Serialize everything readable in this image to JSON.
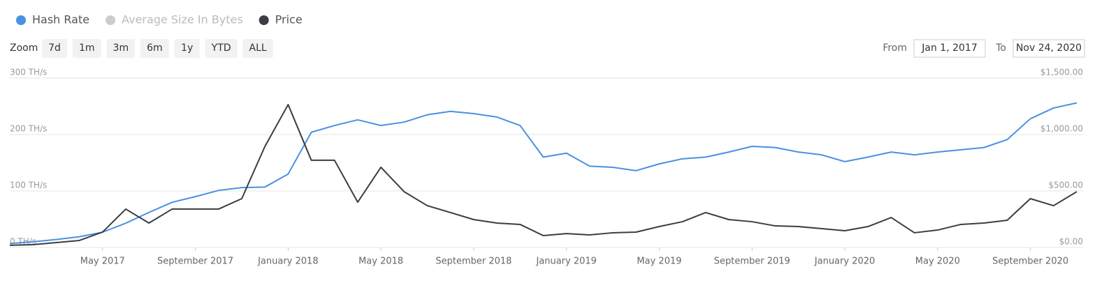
{
  "chart_data": {
    "type": "line",
    "x": [
      "2017-01",
      "2017-02",
      "2017-03",
      "2017-04",
      "2017-05",
      "2017-06",
      "2017-07",
      "2017-08",
      "2017-09",
      "2017-10",
      "2017-11",
      "2017-12",
      "2018-01",
      "2018-02",
      "2018-03",
      "2018-04",
      "2018-05",
      "2018-06",
      "2018-07",
      "2018-08",
      "2018-09",
      "2018-10",
      "2018-11",
      "2018-12",
      "2019-01",
      "2019-02",
      "2019-03",
      "2019-04",
      "2019-05",
      "2019-06",
      "2019-07",
      "2019-08",
      "2019-09",
      "2019-10",
      "2019-11",
      "2019-12",
      "2020-01",
      "2020-02",
      "2020-03",
      "2020-04",
      "2020-05",
      "2020-06",
      "2020-07",
      "2020-08",
      "2020-09",
      "2020-10",
      "2020-11"
    ],
    "xlim": [
      "2017-01",
      "2020-11"
    ],
    "xticks": [
      {
        "value": "2017-05",
        "label": "May 2017"
      },
      {
        "value": "2017-09",
        "label": "September 2017"
      },
      {
        "value": "2018-01",
        "label": "January 2018"
      },
      {
        "value": "2018-05",
        "label": "May 2018"
      },
      {
        "value": "2018-09",
        "label": "September 2018"
      },
      {
        "value": "2019-01",
        "label": "January 2019"
      },
      {
        "value": "2019-05",
        "label": "May 2019"
      },
      {
        "value": "2019-09",
        "label": "September 2019"
      },
      {
        "value": "2020-01",
        "label": "January 2020"
      },
      {
        "value": "2020-05",
        "label": "May 2020"
      },
      {
        "value": "2020-09",
        "label": "September 2020"
      }
    ],
    "ylim": [
      0,
      300
    ],
    "yticks": [
      {
        "value": 0,
        "label": "0 TH/s"
      },
      {
        "value": 100,
        "label": "100 TH/s"
      },
      {
        "value": 200,
        "label": "200 TH/s"
      },
      {
        "value": 300,
        "label": "300 TH/s"
      }
    ],
    "y2lim": [
      0,
      1500
    ],
    "y2ticks": [
      {
        "value": 0,
        "label": "$0.00"
      },
      {
        "value": 500,
        "label": "$500.00"
      },
      {
        "value": 1000,
        "label": "$1,000.00"
      },
      {
        "value": 1500,
        "label": "$1,500.00"
      }
    ],
    "grid": true,
    "series": [
      {
        "name": "Hash Rate",
        "color": "#4a90e2",
        "visible": true,
        "values": [
          7,
          10,
          14,
          19,
          27,
          43,
          62,
          80,
          90,
          101,
          106,
          107,
          130,
          204,
          216,
          226,
          216,
          222,
          235,
          241,
          237,
          231,
          216,
          160,
          167,
          144,
          142,
          136,
          148,
          157,
          160,
          169,
          179,
          177,
          169,
          164,
          152,
          160,
          169,
          164,
          169,
          173,
          177,
          191,
          228,
          247,
          256
        ]
      },
      {
        "name": "Average Size In Bytes",
        "color": "#cccccc",
        "visible": false,
        "values": [
          null,
          null,
          null,
          null,
          null,
          null,
          null,
          null,
          null,
          null,
          null,
          null,
          null,
          null,
          null,
          null,
          null,
          null,
          null,
          null,
          null,
          null,
          null,
          null,
          null,
          null,
          null,
          null,
          null,
          null,
          null,
          null,
          null,
          null,
          null,
          null,
          null,
          null,
          null,
          null,
          null,
          null,
          null,
          null,
          null,
          null,
          null
        ]
      },
      {
        "name": "Price",
        "color": "#3a3d44",
        "visible": true,
        "axis": "y2",
        "values": [
          19,
          25,
          43,
          62,
          136,
          340,
          216,
          340,
          340,
          340,
          432,
          895,
          1265,
          772,
          772,
          401,
          710,
          494,
          370,
          309,
          247,
          216,
          204,
          105,
          123,
          111,
          130,
          136,
          185,
          228,
          309,
          247,
          228,
          191,
          185,
          167,
          148,
          185,
          265,
          130,
          154,
          204,
          216,
          241,
          432,
          370,
          494
        ]
      }
    ]
  },
  "zoom": {
    "label": "Zoom",
    "buttons": [
      "7d",
      "1m",
      "3m",
      "6m",
      "1y",
      "YTD",
      "ALL"
    ]
  },
  "range": {
    "from_label": "From",
    "from": "Jan 1, 2017",
    "to_label": "To",
    "to": "Nov 24, 2020"
  }
}
